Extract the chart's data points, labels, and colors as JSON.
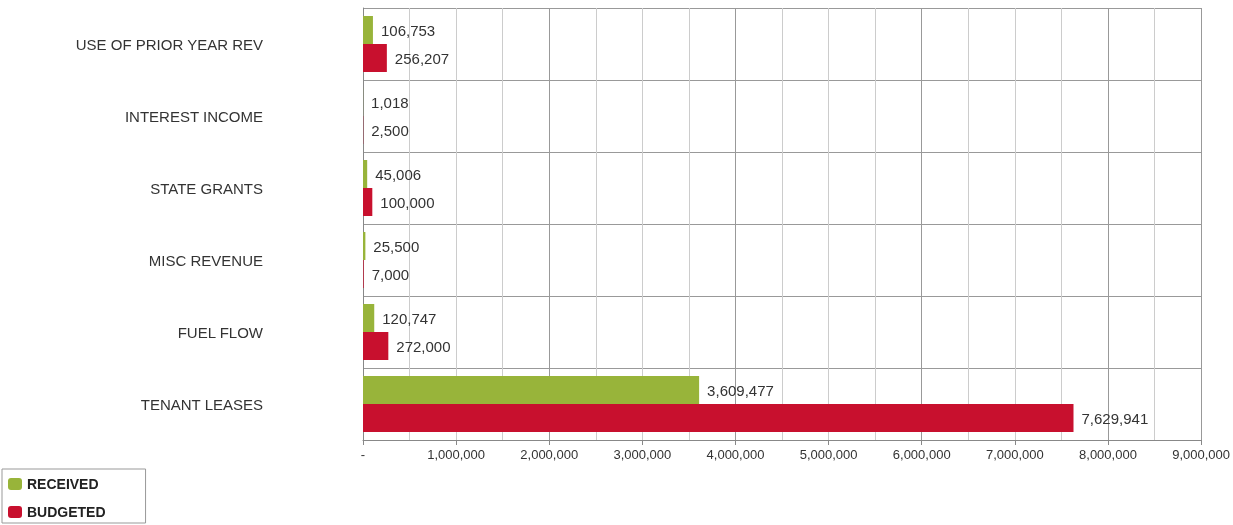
{
  "chart_data": {
    "type": "bar",
    "orientation": "horizontal",
    "categories": [
      "USE OF PRIOR YEAR REV",
      "INTEREST INCOME",
      "STATE GRANTS",
      "MISC REVENUE",
      "FUEL FLOW",
      "TENANT LEASES"
    ],
    "series": [
      {
        "name": "RECEIVED",
        "color": "#98b43a",
        "values": [
          106753,
          1018,
          45006,
          25500,
          120747,
          3609477
        ],
        "value_labels": [
          "106,753",
          "1,018",
          "45,006",
          "25,500",
          "120,747",
          "3,609,477"
        ]
      },
      {
        "name": "BUDGETED",
        "color": "#c8102e",
        "values": [
          256207,
          2500,
          100000,
          7000,
          272000,
          7629941
        ],
        "value_labels": [
          "256,207",
          "2,500",
          "100,000",
          "7,000",
          "272,000",
          "7,629,941"
        ]
      }
    ],
    "xlim": [
      0,
      9000000
    ],
    "xticks": [
      {
        "value": 0,
        "label": "-"
      },
      {
        "value": 1000000,
        "label": "1,000,000"
      },
      {
        "value": 2000000,
        "label": "2,000,000"
      },
      {
        "value": 3000000,
        "label": "3,000,000"
      },
      {
        "value": 4000000,
        "label": "4,000,000"
      },
      {
        "value": 5000000,
        "label": "5,000,000"
      },
      {
        "value": 6000000,
        "label": "6,000,000"
      },
      {
        "value": 7000000,
        "label": "7,000,000"
      },
      {
        "value": 8000000,
        "label": "8,000,000"
      },
      {
        "value": 9000000,
        "label": "9,000,000"
      }
    ],
    "grid": true,
    "legend": "bottom left"
  }
}
